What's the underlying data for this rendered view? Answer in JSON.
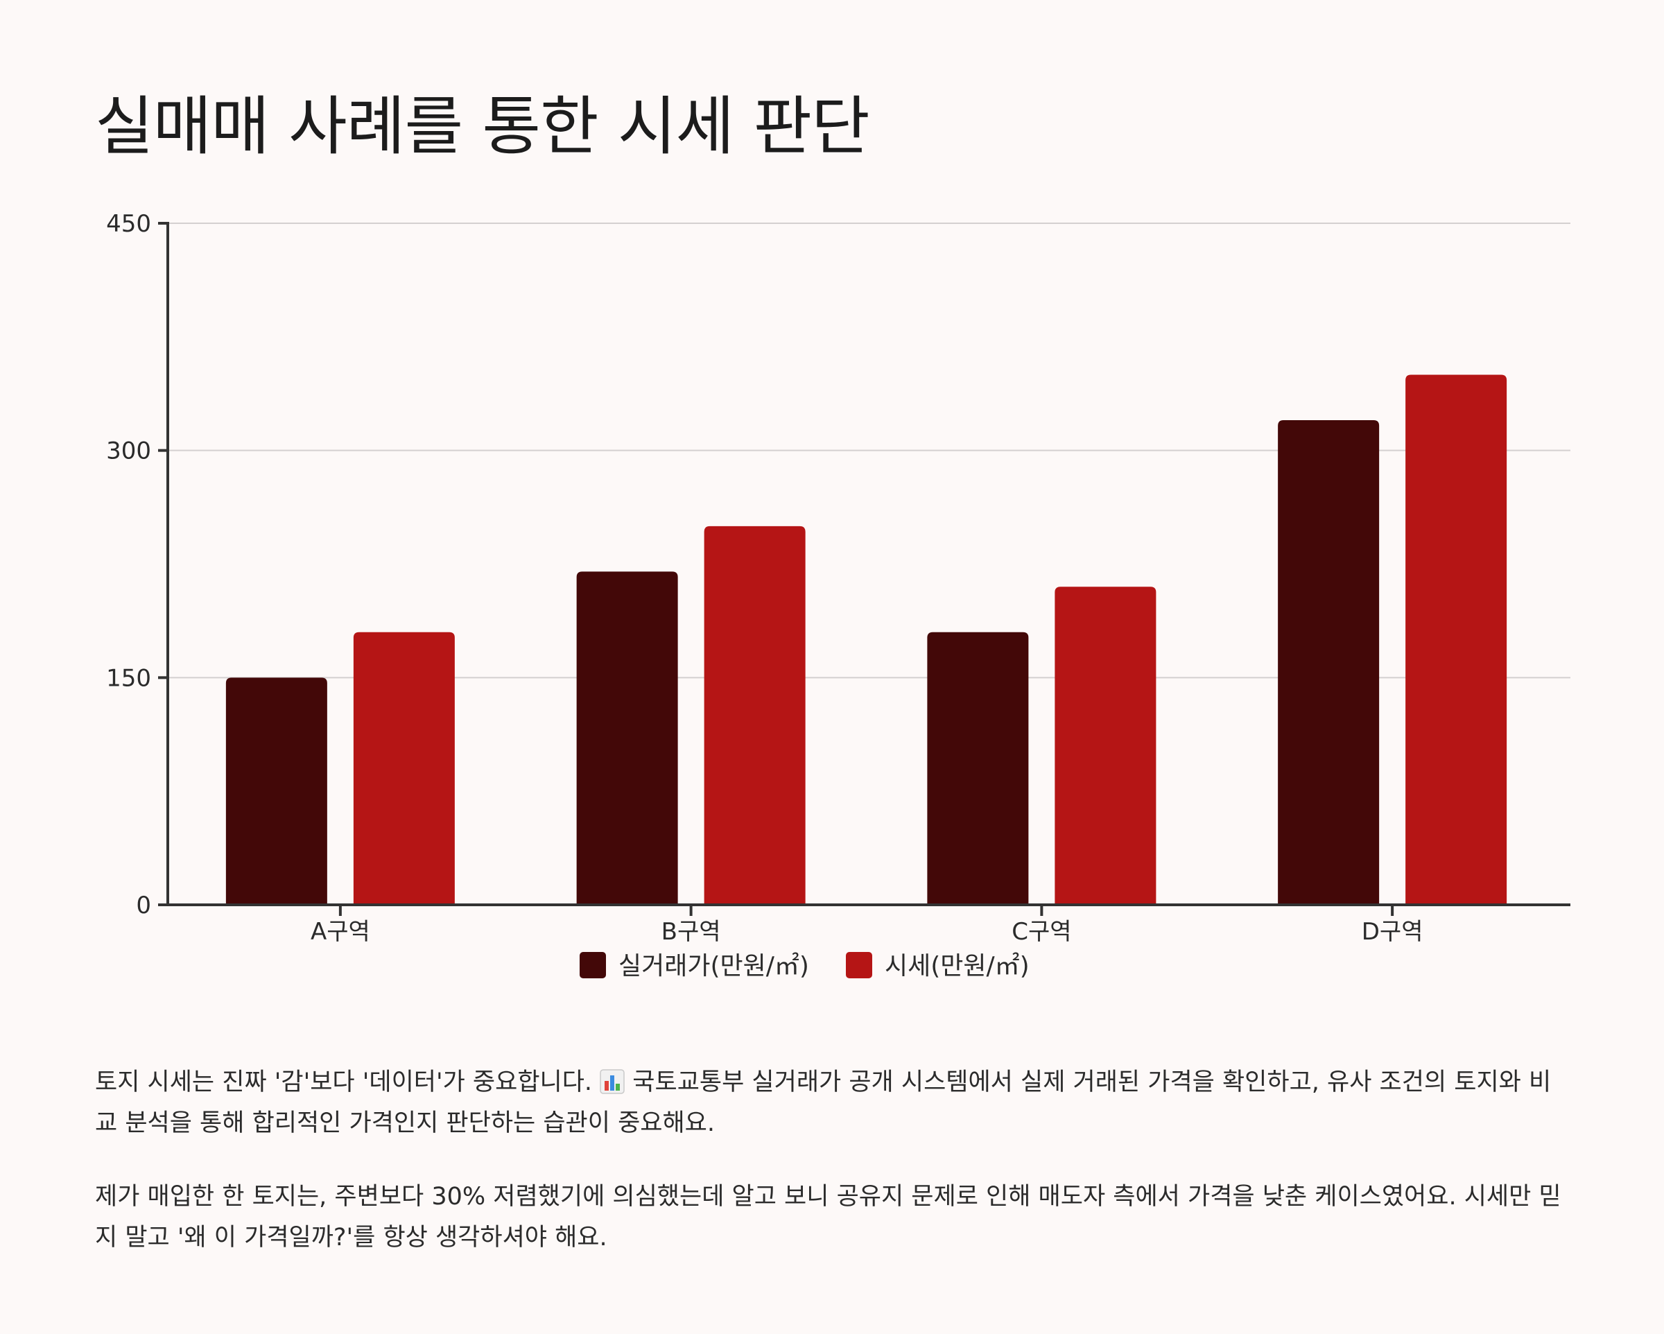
{
  "title": "실매매 사례를 통한 시세 판단",
  "chart_data": {
    "type": "bar",
    "categories": [
      "A구역",
      "B구역",
      "C구역",
      "D구역"
    ],
    "series": [
      {
        "name": "실거래가(만원/㎡)",
        "values": [
          150,
          220,
          180,
          320
        ],
        "color": "#430808"
      },
      {
        "name": "시세(만원/㎡)",
        "values": [
          180,
          250,
          210,
          350
        ],
        "color": "#b51515"
      }
    ],
    "y_ticks": [
      0,
      150,
      300,
      450
    ],
    "ylim": [
      0,
      450
    ],
    "grid": true,
    "legend_position": "bottom"
  },
  "paragraphs": {
    "p1_before": "토지 시세는 진짜 '감'보다 '데이터'가 중요합니다. ",
    "p1_emoji": "bar-chart-emoji",
    "p1_after": " 국토교통부 실거래가 공개 시스템에서 실제 거래된 가격을 확인하고, 유사 조건의 토지와 비교 분석을 통해 합리적인 가격인지 판단하는 습관이 중요해요.",
    "p2": "제가 매입한 한 토지는, 주변보다 30% 저렴했기에 의심했는데 알고 보니 공유지 문제로 인해 매도자 측에서 가격을 낮춘 케이스였어요. 시세만 믿지 말고 '왜 이 가격일까?'를 항상 생각하셔야 해요."
  }
}
